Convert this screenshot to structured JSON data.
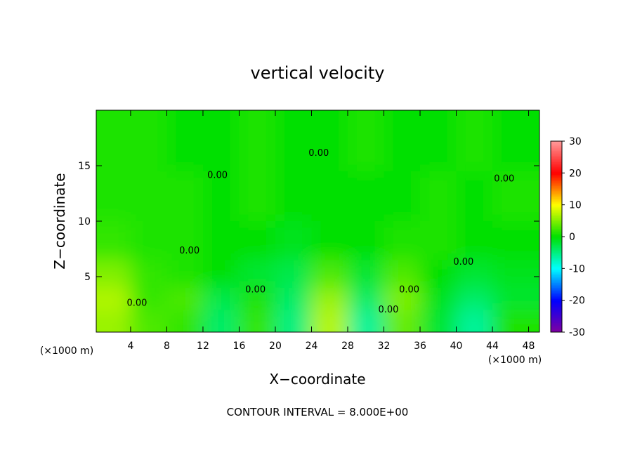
{
  "chart_data": {
    "type": "heatmap",
    "title": "vertical velocity",
    "xlabel": "X−coordinate",
    "ylabel": "Z−coordinate",
    "x_unit": "(×1000 m)",
    "y_unit": "(×1000 m)",
    "footer": "CONTOUR INTERVAL = 8.000E+00",
    "x": [
      2,
      6,
      10,
      14,
      18,
      22,
      26,
      30,
      34,
      38,
      42,
      46
    ],
    "y": [
      1,
      3,
      5,
      8,
      12,
      17
    ],
    "z": [
      [
        6,
        3,
        2,
        -4,
        2,
        -5,
        7,
        -6,
        4,
        -2,
        -6,
        1
      ],
      [
        7,
        2,
        3,
        -3,
        1,
        -4,
        6,
        -4,
        5,
        -1,
        -4,
        -2
      ],
      [
        5,
        2,
        1,
        0,
        -2,
        -3,
        3,
        -2,
        3,
        0,
        -2,
        -1
      ],
      [
        2,
        1,
        1,
        0,
        0,
        -1,
        0,
        0,
        1,
        1,
        0,
        0
      ],
      [
        1,
        1,
        1,
        0,
        1,
        0,
        0,
        0,
        0,
        1,
        0,
        1
      ],
      [
        1,
        1,
        0,
        0,
        1,
        0,
        0,
        1,
        0,
        0,
        1,
        0
      ]
    ],
    "xlim": [
      0.2,
      49.2
    ],
    "ylim": [
      0,
      20
    ],
    "xticks": [
      4,
      8,
      12,
      16,
      20,
      24,
      28,
      32,
      36,
      40,
      44,
      48
    ],
    "yticks": [
      5,
      10,
      15
    ],
    "clim": [
      -30,
      30
    ],
    "cticks": [
      -30,
      -20,
      -10,
      0,
      10,
      20,
      30
    ],
    "colormap": [
      "#8000a0",
      "#0000ff",
      "#00ffff",
      "#00e000",
      "#ffff00",
      "#ff0000",
      "#ff9a9a"
    ],
    "annotations": [
      {
        "text": "0.00",
        "x": 24.8,
        "y": 16.2
      },
      {
        "text": "0.00",
        "x": 13.6,
        "y": 14.2
      },
      {
        "text": "0.00",
        "x": 10.5,
        "y": 7.4
      },
      {
        "text": "0.00",
        "x": 17.8,
        "y": 3.9
      },
      {
        "text": "0.00",
        "x": 32.5,
        "y": 2.1
      },
      {
        "text": "0.00",
        "x": 34.8,
        "y": 3.9
      },
      {
        "text": "0.00",
        "x": 40.8,
        "y": 6.4
      },
      {
        "text": "0.00",
        "x": 45.3,
        "y": 13.9
      },
      {
        "text": "0.00",
        "x": 4.7,
        "y": 2.7
      }
    ]
  }
}
